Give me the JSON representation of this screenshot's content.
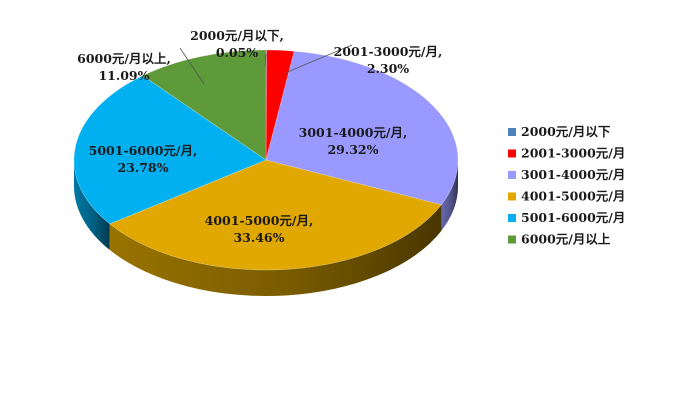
{
  "chart_data": {
    "type": "pie",
    "style": "3d",
    "title": "",
    "legend_position": "right",
    "categories": [
      "2000元/月以下",
      "2001-3000元/月",
      "3001-4000元/月",
      "4001-5000元/月",
      "5001-6000元/月",
      "6000元/月以上"
    ],
    "values": [
      0.05,
      2.3,
      29.32,
      33.46,
      23.78,
      11.09
    ],
    "data_labels": [
      [
        "2000元/月以下,",
        "0.05%"
      ],
      [
        "2001-3000元/月,",
        "2.30%"
      ],
      [
        "3001-4000元/月,",
        "29.32%"
      ],
      [
        "4001-5000元/月,",
        "33.46%"
      ],
      [
        "5001-6000元/月,",
        "23.78%"
      ],
      [
        "6000元/月以上,",
        "11.09%"
      ]
    ],
    "colors": [
      "#4f81bd",
      "#ff0000",
      "#9999ff",
      "#e0a800",
      "#00b0f0",
      "#5e9a3a"
    ]
  }
}
